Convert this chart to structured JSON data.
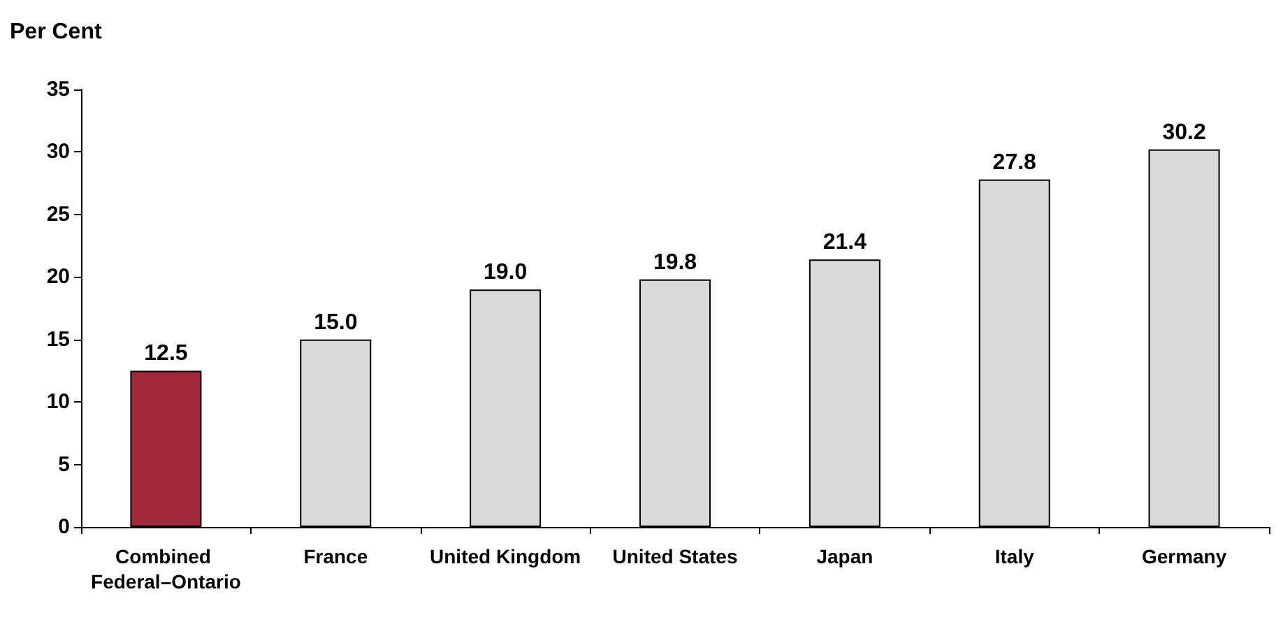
{
  "chart_data": {
    "type": "bar",
    "ylabel": "Per Cent",
    "categories": [
      "Combined Federal–Ontario",
      "France",
      "United Kingdom",
      "United States",
      "Japan",
      "Italy",
      "Germany"
    ],
    "values": [
      12.5,
      15.0,
      19.0,
      19.8,
      21.4,
      27.8,
      30.2
    ],
    "value_labels": [
      "12.5",
      "15.0",
      "19.0",
      "19.8",
      "21.4",
      "27.8",
      "30.2"
    ],
    "colors": [
      "#a3283c",
      "#d9d9d9",
      "#d9d9d9",
      "#d9d9d9",
      "#d9d9d9",
      "#d9d9d9",
      "#d9d9d9"
    ],
    "ylim": [
      0,
      35
    ],
    "yticks": [
      0,
      5,
      10,
      15,
      20,
      25,
      30,
      35
    ]
  }
}
